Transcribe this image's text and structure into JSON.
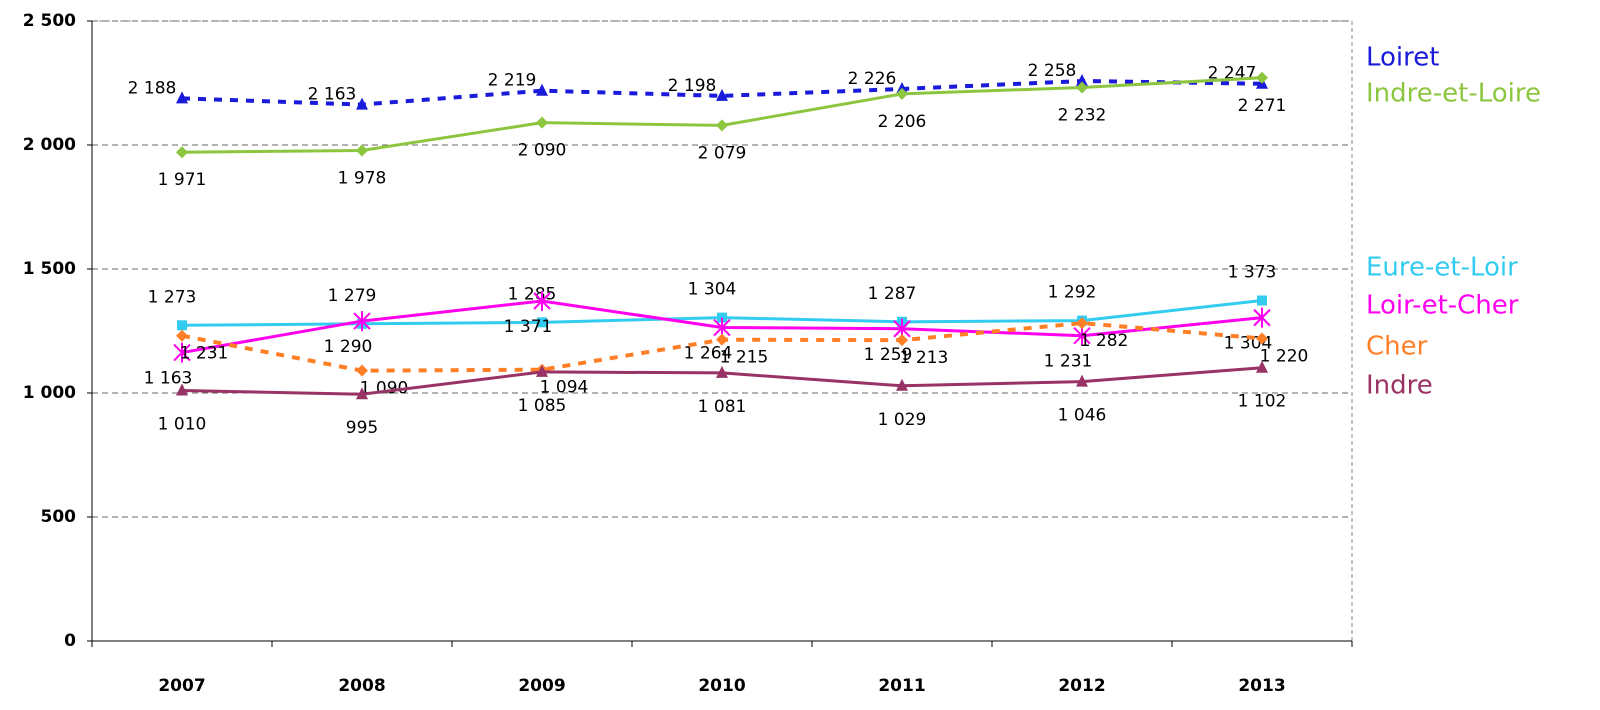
{
  "chart_data": {
    "type": "line",
    "categories": [
      "2007",
      "2008",
      "2009",
      "2010",
      "2011",
      "2012",
      "2013"
    ],
    "ylim": [
      0,
      2500
    ],
    "yticks": [
      0,
      500,
      {
        "value": 1000,
        "label": "1 000"
      },
      {
        "value": 1500,
        "label": "1 500"
      },
      {
        "value": 2000,
        "label": "2 000"
      },
      {
        "value": 2500,
        "label": "2 500"
      }
    ],
    "grid": true,
    "series": [
      {
        "name": "Loiret",
        "color": "#1a1adb",
        "marker": "triangle",
        "dashed": true,
        "values": [
          2188,
          2163,
          2219,
          2198,
          2226,
          2258,
          2247
        ],
        "value_labels": [
          "2 188",
          "2 163",
          "2 219",
          "2 198",
          "2 226",
          "2 258",
          "2 247"
        ]
      },
      {
        "name": "Indre-et-Loire",
        "color": "#8cc63f",
        "marker": "diamond",
        "dashed": false,
        "values": [
          1971,
          1978,
          2090,
          2079,
          2206,
          2232,
          2271
        ],
        "value_labels": [
          "1 971",
          "1 978",
          "2 090",
          "2 079",
          "2 206",
          "2 232",
          "2 271"
        ]
      },
      {
        "name": "Eure-et-Loir",
        "color": "#33ccf0",
        "marker": "square",
        "dashed": false,
        "values": [
          1273,
          1279,
          1285,
          1304,
          1287,
          1292,
          1373
        ],
        "value_labels": [
          "1 273",
          "1 279",
          "1 285",
          "1 304",
          "1 287",
          "1 292",
          "1 373"
        ]
      },
      {
        "name": "Loir-et-Cher",
        "color": "#ff00ee",
        "marker": "star",
        "dashed": false,
        "values": [
          1163,
          1290,
          1371,
          1264,
          1259,
          1231,
          1304
        ],
        "value_labels": [
          "1 163",
          "1 290",
          "1 371",
          "1 264",
          "1 259",
          "1 231",
          "1 304"
        ]
      },
      {
        "name": "Cher",
        "color": "#ff7f27",
        "marker": "diamond",
        "dashed": true,
        "values": [
          1231,
          1090,
          1094,
          1215,
          1213,
          1282,
          1220
        ],
        "value_labels": [
          "1 231",
          "1 090",
          "1 094",
          "1 215",
          "1 213",
          "1 282",
          "1 220"
        ]
      },
      {
        "name": "Indre",
        "color": "#993366",
        "marker": "triangle",
        "dashed": false,
        "values": [
          1010,
          995,
          1085,
          1081,
          1029,
          1046,
          1102
        ],
        "value_labels": [
          "1 010",
          "995",
          "1 085",
          "1 081",
          "1 029",
          "1 046",
          "1 102"
        ]
      }
    ]
  }
}
